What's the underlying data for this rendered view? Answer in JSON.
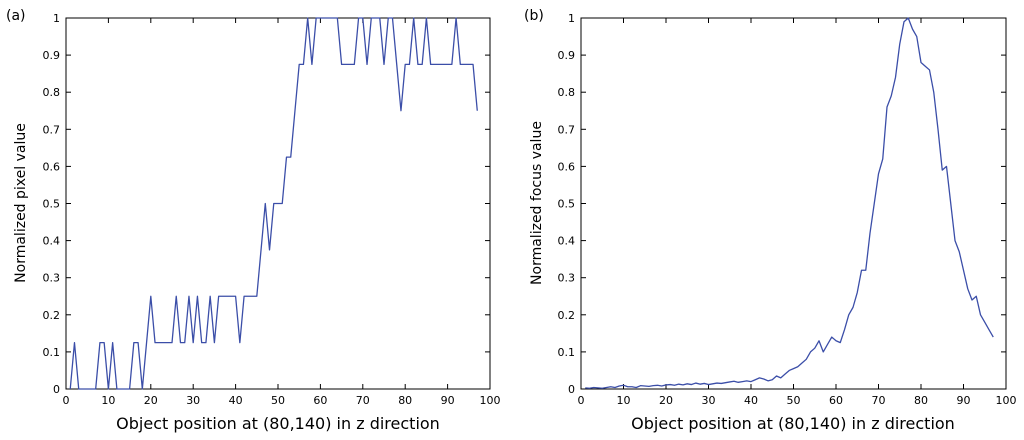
{
  "colors": {
    "series": "#3b4ea8"
  },
  "chart_data": [
    {
      "type": "line",
      "panel_label": "(a)",
      "title": "",
      "xlabel": "Object position at (80,140) in z direction",
      "ylabel": "Normalized pixel value",
      "xlim": [
        0,
        100
      ],
      "ylim": [
        0,
        1
      ],
      "xticks": [
        0,
        10,
        20,
        30,
        40,
        50,
        60,
        70,
        80,
        90,
        100
      ],
      "yticks": [
        0,
        0.1,
        0.2,
        0.3,
        0.4,
        0.5,
        0.6,
        0.7,
        0.8,
        0.9,
        1
      ],
      "grid": false,
      "series": [
        {
          "x": [
            1,
            2,
            3,
            4,
            5,
            6,
            7,
            8,
            9,
            10,
            11,
            12,
            13,
            14,
            15,
            16,
            17,
            18,
            19,
            20,
            21,
            22,
            23,
            24,
            25,
            26,
            27,
            28,
            29,
            30,
            31,
            32,
            33,
            34,
            35,
            36,
            37,
            38,
            39,
            40,
            41,
            42,
            43,
            44,
            45,
            46,
            47,
            48,
            49,
            50,
            51,
            52,
            53,
            54,
            55,
            56,
            57,
            58,
            59,
            60,
            61,
            62,
            63,
            64,
            65,
            66,
            67,
            68,
            69,
            70,
            71,
            72,
            73,
            74,
            75,
            76,
            77,
            78,
            79,
            80,
            81,
            82,
            83,
            84,
            85,
            86,
            87,
            88,
            89,
            90,
            91,
            92,
            93,
            94,
            95,
            96,
            97
          ],
          "y": [
            0,
            0.125,
            0,
            0,
            0,
            0,
            0,
            0.125,
            0.125,
            0,
            0.125,
            0,
            0,
            0,
            0,
            0.125,
            0.125,
            0,
            0.125,
            0.25,
            0.125,
            0.125,
            0.125,
            0.125,
            0.125,
            0.25,
            0.125,
            0.125,
            0.25,
            0.125,
            0.25,
            0.125,
            0.125,
            0.25,
            0.125,
            0.25,
            0.25,
            0.25,
            0.25,
            0.25,
            0.125,
            0.25,
            0.25,
            0.25,
            0.25,
            0.375,
            0.5,
            0.375,
            0.5,
            0.5,
            0.5,
            0.625,
            0.625,
            0.75,
            0.875,
            0.875,
            1,
            0.875,
            1,
            1,
            1,
            1,
            1,
            1,
            0.875,
            0.875,
            0.875,
            0.875,
            1,
            1,
            0.875,
            1,
            1,
            1,
            0.875,
            1,
            1,
            0.875,
            0.75,
            0.875,
            0.875,
            1,
            0.875,
            0.875,
            1,
            0.875,
            0.875,
            0.875,
            0.875,
            0.875,
            0.875,
            1,
            0.875,
            0.875,
            0.875,
            0.875,
            0.75
          ]
        }
      ]
    },
    {
      "type": "line",
      "panel_label": "(b)",
      "title": "",
      "xlabel": "Object position at (80,140) in z direction",
      "ylabel": "Normalized focus value",
      "xlim": [
        0,
        100
      ],
      "ylim": [
        0,
        1
      ],
      "xticks": [
        0,
        10,
        20,
        30,
        40,
        50,
        60,
        70,
        80,
        90,
        100
      ],
      "yticks": [
        0,
        0.1,
        0.2,
        0.3,
        0.4,
        0.5,
        0.6,
        0.7,
        0.8,
        0.9,
        1
      ],
      "grid": false,
      "series": [
        {
          "x": [
            1,
            2,
            3,
            4,
            5,
            6,
            7,
            8,
            9,
            10,
            11,
            12,
            13,
            14,
            15,
            16,
            17,
            18,
            19,
            20,
            21,
            22,
            23,
            24,
            25,
            26,
            27,
            28,
            29,
            30,
            31,
            32,
            33,
            34,
            35,
            36,
            37,
            38,
            39,
            40,
            41,
            42,
            43,
            44,
            45,
            46,
            47,
            48,
            49,
            50,
            51,
            52,
            53,
            54,
            55,
            56,
            57,
            58,
            59,
            60,
            61,
            62,
            63,
            64,
            65,
            66,
            67,
            68,
            69,
            70,
            71,
            72,
            73,
            74,
            75,
            76,
            77,
            78,
            79,
            80,
            81,
            82,
            83,
            84,
            85,
            86,
            87,
            88,
            89,
            90,
            91,
            92,
            93,
            94,
            95,
            96,
            97
          ],
          "y": [
            0.003,
            0.002,
            0.004,
            0.003,
            0.002,
            0.004,
            0.006,
            0.004,
            0.008,
            0.01,
            0.006,
            0.006,
            0.004,
            0.009,
            0.008,
            0.007,
            0.009,
            0.01,
            0.008,
            0.011,
            0.012,
            0.01,
            0.013,
            0.011,
            0.014,
            0.012,
            0.016,
            0.013,
            0.015,
            0.012,
            0.014,
            0.016,
            0.015,
            0.017,
            0.019,
            0.021,
            0.018,
            0.02,
            0.022,
            0.02,
            0.025,
            0.03,
            0.027,
            0.022,
            0.025,
            0.035,
            0.03,
            0.04,
            0.05,
            0.055,
            0.06,
            0.07,
            0.08,
            0.1,
            0.11,
            0.13,
            0.1,
            0.12,
            0.14,
            0.13,
            0.125,
            0.16,
            0.2,
            0.22,
            0.26,
            0.32,
            0.32,
            0.42,
            0.5,
            0.58,
            0.62,
            0.76,
            0.79,
            0.84,
            0.93,
            0.99,
            1.0,
            0.97,
            0.95,
            0.88,
            0.87,
            0.86,
            0.8,
            0.7,
            0.59,
            0.6,
            0.5,
            0.4,
            0.37,
            0.32,
            0.27,
            0.24,
            0.25,
            0.2,
            0.18,
            0.16,
            0.14
          ]
        }
      ]
    }
  ]
}
